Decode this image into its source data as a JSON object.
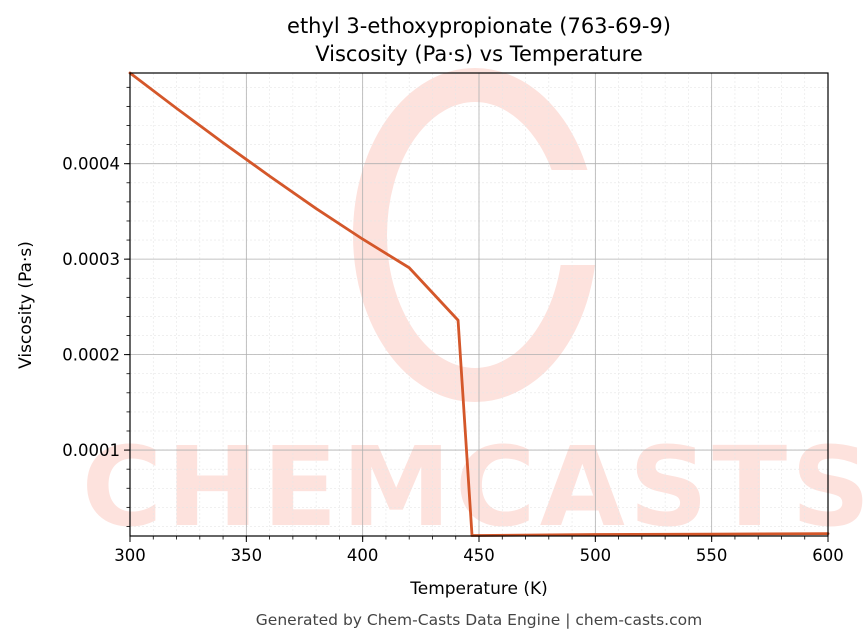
{
  "chart_data": {
    "type": "line",
    "title": "ethyl 3-ethoxypropionate (763-69-9)",
    "subtitle": "Viscosity (Pa·s) vs Temperature",
    "xlabel": "Temperature (K)",
    "ylabel": "Viscosity (Pa·s)",
    "xlim": [
      300,
      600
    ],
    "ylim": [
      1e-05,
      0.000495
    ],
    "xticks": [
      300,
      350,
      400,
      450,
      500,
      550,
      600
    ],
    "xtick_labels": [
      "300",
      "350",
      "400",
      "450",
      "500",
      "550",
      "600"
    ],
    "yticks": [
      0.0001,
      0.0002,
      0.0003,
      0.0004
    ],
    "ytick_labels": [
      "0.0001",
      "0.0002",
      "0.0003",
      "0.0004"
    ],
    "grid": true,
    "line_color": "#d4572a",
    "series": [
      {
        "x": [
          300,
          320,
          340,
          360,
          380,
          400,
          420,
          441,
          447,
          450,
          500,
          550,
          600
        ],
        "y": [
          0.000495,
          0.000458,
          0.000422,
          0.000387,
          0.000353,
          0.000321,
          0.000291,
          0.000236,
          1.05e-05,
          1.05e-05,
          1.15e-05,
          1.2e-05,
          1.25e-05
        ]
      }
    ]
  },
  "watermark": {
    "text": "CHEMCASTS",
    "color": "#fde2dd"
  },
  "footer": "Generated by Chem-Casts Data Engine | chem-casts.com"
}
